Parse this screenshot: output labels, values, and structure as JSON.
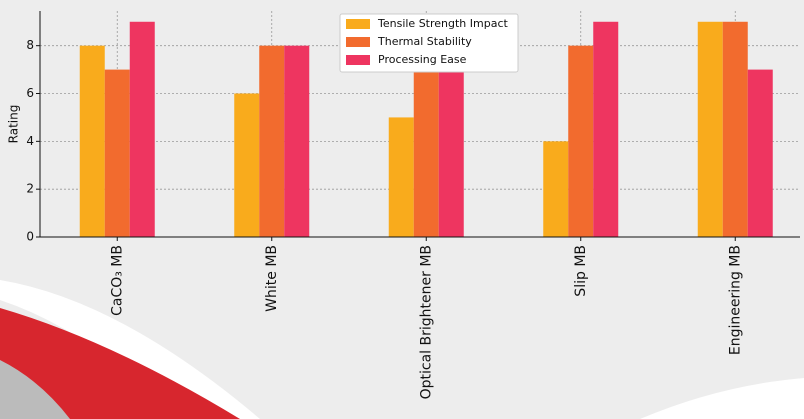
{
  "chart_data": {
    "type": "bar",
    "categories": [
      "CaCO₃ MB",
      "White MB",
      "Optical Brightener MB",
      "Slip MB",
      "Engineering MB"
    ],
    "series": [
      {
        "name": "Tensile Strength Impact",
        "color": "#f9ab1c",
        "values": [
          8,
          6,
          5,
          4,
          9
        ]
      },
      {
        "name": "Thermal Stability",
        "color": "#f26b2e",
        "values": [
          7,
          8,
          9,
          8,
          9
        ]
      },
      {
        "name": "Processing Ease",
        "color": "#ee3560",
        "values": [
          9,
          8,
          8,
          9,
          7
        ]
      }
    ],
    "y_label": "Rating",
    "ylim": [
      0,
      9.45
    ],
    "yticks": [
      0,
      2,
      4,
      6,
      8
    ],
    "grid": true,
    "legend": "top"
  }
}
